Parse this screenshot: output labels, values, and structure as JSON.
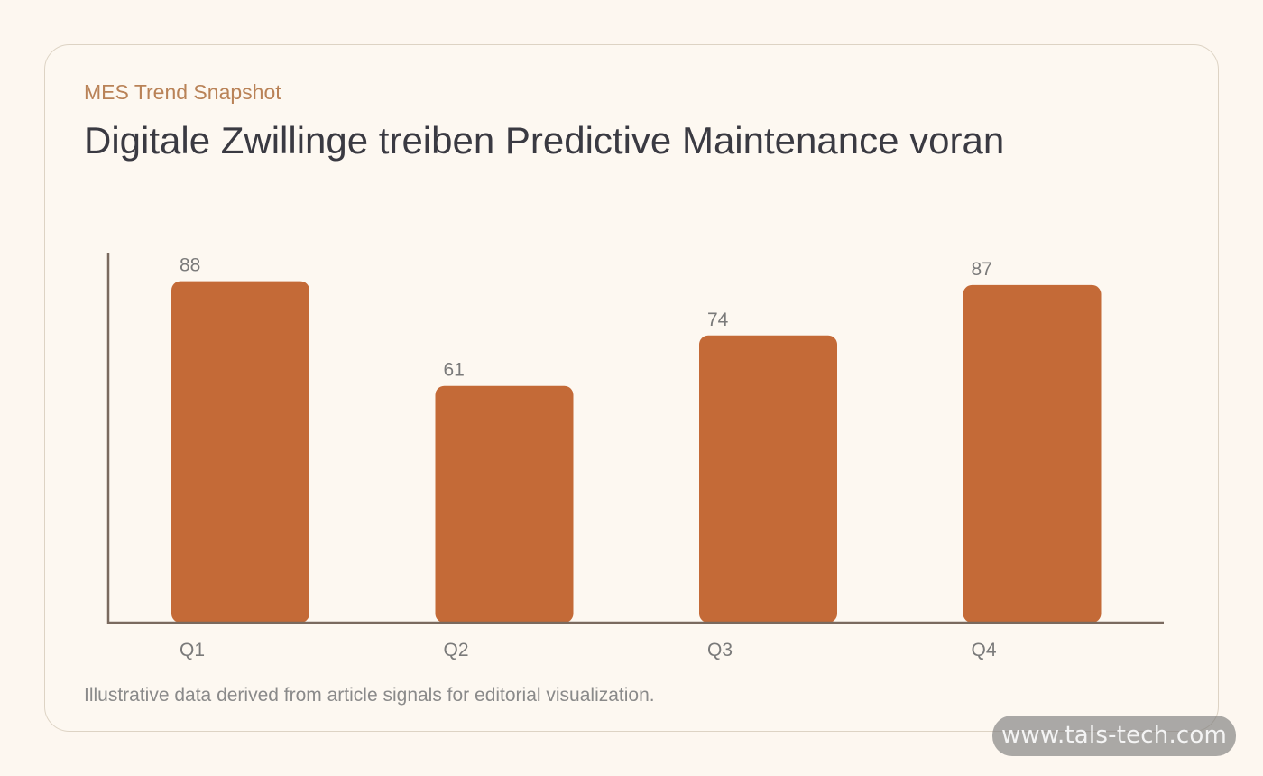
{
  "header": {
    "kicker": "MES Trend Snapshot",
    "title": "Digitale Zwillinge treiben Predictive Maintenance voran"
  },
  "chart_data": {
    "type": "bar",
    "title": "Digitale Zwillinge treiben Predictive Maintenance voran",
    "categories": [
      "Q1",
      "Q2",
      "Q3",
      "Q4"
    ],
    "values": [
      88,
      61,
      74,
      87
    ],
    "xlabel": "",
    "ylabel": "",
    "ylim": [
      0,
      96
    ],
    "grid": false,
    "bar_color": "#c46a37",
    "axis_color": "#7a6a5f"
  },
  "footnote": "Illustrative data derived from article signals for editorial visualization.",
  "watermark": "www.tals-tech.com",
  "colors": {
    "background": "#fdf7f0",
    "accent": "#b98257",
    "bar": "#c46a37"
  }
}
